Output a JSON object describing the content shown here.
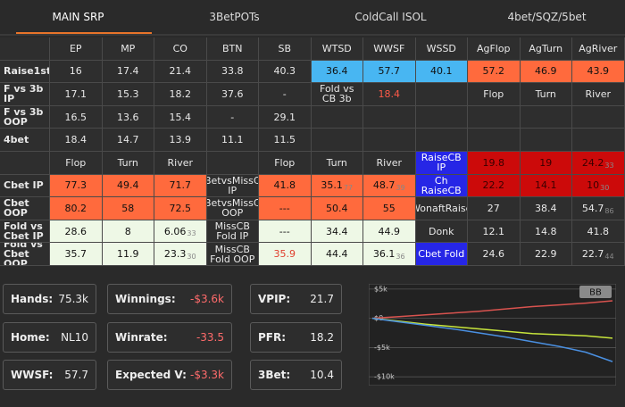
{
  "tabs": [
    {
      "label": "MAIN SRP",
      "active": true
    },
    {
      "label": "3BetPOTs"
    },
    {
      "label": "ColdCall ISOL"
    },
    {
      "label": "4bet/SQZ/5bet"
    }
  ],
  "grid": {
    "rows": [
      [
        null,
        {
          "t": "EP"
        },
        {
          "t": "MP"
        },
        {
          "t": "CO"
        },
        {
          "t": "BTN"
        },
        {
          "t": "SB"
        },
        {
          "t": "WTSD"
        },
        {
          "t": "WWSF"
        },
        {
          "t": "WSSD"
        },
        {
          "t": "AgFlop"
        },
        {
          "t": "AgTurn"
        },
        {
          "t": "AgRiver"
        }
      ],
      [
        {
          "t": "Raise1st"
        },
        {
          "t": "16"
        },
        {
          "t": "17.4"
        },
        {
          "t": "21.4"
        },
        {
          "t": "33.8"
        },
        {
          "t": "40.3"
        },
        {
          "t": "36.4",
          "bg": "#48b6f2",
          "fg": "#111111"
        },
        {
          "t": "57.7",
          "bg": "#48b6f2",
          "fg": "#111111"
        },
        {
          "t": "40.1",
          "bg": "#48b6f2",
          "fg": "#111111"
        },
        {
          "t": "57.2",
          "bg": "#ff6a3d",
          "fg": "#111111"
        },
        {
          "t": "46.9",
          "bg": "#ff6a3d",
          "fg": "#111111"
        },
        {
          "t": "43.9",
          "bg": "#ff6a3d",
          "fg": "#111111"
        }
      ],
      [
        {
          "t": "F vs 3b IP"
        },
        {
          "t": "17.1"
        },
        {
          "t": "15.3"
        },
        {
          "t": "18.2"
        },
        {
          "t": "37.6"
        },
        {
          "t": "-"
        },
        {
          "t": "Fold vs CB 3b"
        },
        {
          "t": "18.4",
          "fg": "#ff5a48"
        },
        null,
        {
          "t": "Flop"
        },
        {
          "t": "Turn"
        },
        {
          "t": "River"
        }
      ],
      [
        {
          "t": "F vs 3b OOP"
        },
        {
          "t": "16.5"
        },
        {
          "t": "13.6"
        },
        {
          "t": "15.4"
        },
        {
          "t": "-"
        },
        {
          "t": "29.1"
        },
        null,
        null,
        null,
        null,
        null,
        null
      ],
      [
        {
          "t": "4bet"
        },
        {
          "t": "18.4"
        },
        {
          "t": "14.7"
        },
        {
          "t": "13.9"
        },
        {
          "t": "11.1"
        },
        {
          "t": "11.5"
        },
        null,
        null,
        null,
        null,
        null,
        null
      ],
      [
        null,
        {
          "t": "Flop"
        },
        {
          "t": "Turn"
        },
        {
          "t": "River"
        },
        null,
        {
          "t": "Flop"
        },
        {
          "t": "Turn"
        },
        {
          "t": "River"
        },
        {
          "t": "RaiseCB IP",
          "bg": "#2626e6",
          "fg": "#ffffff"
        },
        {
          "t": "19.8",
          "bg": "#cc0a0a",
          "fg": "#3a0000"
        },
        {
          "t": "19",
          "bg": "#cc0a0a",
          "fg": "#3a0000"
        },
        {
          "t": "24.2",
          "sub": "33",
          "bg": "#cc0a0a",
          "fg": "#3a0000"
        }
      ],
      [
        {
          "t": "Cbet IP"
        },
        {
          "t": "77.3",
          "bg": "#ff6a3d",
          "fg": "#111111"
        },
        {
          "t": "49.4",
          "bg": "#ff6a3d",
          "fg": "#111111"
        },
        {
          "t": "71.7",
          "bg": "#ff6a3d",
          "fg": "#111111"
        },
        {
          "t": "BetvsMissC IP"
        },
        {
          "t": "41.8",
          "bg": "#ff6a3d",
          "fg": "#111111"
        },
        {
          "t": "35.1",
          "sub": "77",
          "bg": "#ff6a3d",
          "fg": "#111111"
        },
        {
          "t": "48.7",
          "sub": "39",
          "bg": "#ff6a3d",
          "fg": "#111111"
        },
        {
          "t": "Ch RaiseCB",
          "bg": "#2626e6",
          "fg": "#ffffff"
        },
        {
          "t": "22.2",
          "bg": "#cc0a0a",
          "fg": "#3a0000"
        },
        {
          "t": "14.1",
          "bg": "#cc0a0a",
          "fg": "#3a0000"
        },
        {
          "t": "10",
          "sub": "30",
          "bg": "#cc0a0a",
          "fg": "#3a0000"
        }
      ],
      [
        {
          "t": "Cbet OOP"
        },
        {
          "t": "80.2",
          "bg": "#ff6a3d",
          "fg": "#111111"
        },
        {
          "t": "58",
          "bg": "#ff6a3d",
          "fg": "#111111"
        },
        {
          "t": "72.5",
          "bg": "#ff6a3d",
          "fg": "#111111"
        },
        {
          "t": "BetvsMissC OOP"
        },
        {
          "t": "---",
          "bg": "#ff6a3d",
          "fg": "#111111"
        },
        {
          "t": "50.4",
          "bg": "#ff6a3d",
          "fg": "#111111"
        },
        {
          "t": "55",
          "bg": "#ff6a3d",
          "fg": "#111111"
        },
        {
          "t": "WonaftRaise"
        },
        {
          "t": "27"
        },
        {
          "t": "38.4"
        },
        {
          "t": "54.7",
          "sub": "86"
        }
      ],
      [
        {
          "t": "Fold vs Cbet IP"
        },
        {
          "t": "28.6",
          "bg": "#eef8e6",
          "fg": "#111111"
        },
        {
          "t": "8",
          "bg": "#eef8e6",
          "fg": "#111111"
        },
        {
          "t": "6.06",
          "sub": "33",
          "bg": "#eef8e6",
          "fg": "#111111"
        },
        {
          "t": "MissCB Fold IP"
        },
        {
          "t": "---",
          "bg": "#eef8e6",
          "fg": "#111111"
        },
        {
          "t": "34.4",
          "bg": "#eef8e6",
          "fg": "#111111"
        },
        {
          "t": "44.9",
          "bg": "#eef8e6",
          "fg": "#111111"
        },
        {
          "t": "Donk"
        },
        {
          "t": "12.1"
        },
        {
          "t": "14.8"
        },
        {
          "t": "41.8"
        }
      ],
      [
        {
          "t": "Fold vs Cbet OOP"
        },
        {
          "t": "35.7",
          "bg": "#eef8e6",
          "fg": "#111111"
        },
        {
          "t": "11.9",
          "bg": "#eef8e6",
          "fg": "#111111"
        },
        {
          "t": "23.3",
          "sub": "30",
          "bg": "#eef8e6",
          "fg": "#111111"
        },
        {
          "t": "MissCB Fold OOP"
        },
        {
          "t": "35.9",
          "bg": "#eef8e6",
          "fg": "#e0402e"
        },
        {
          "t": "44.4",
          "bg": "#eef8e6",
          "fg": "#111111"
        },
        {
          "t": "36.1",
          "sub": "36",
          "bg": "#eef8e6",
          "fg": "#111111"
        },
        {
          "t": "Cbet Fold",
          "bg": "#2626e6",
          "fg": "#ffffff"
        },
        {
          "t": "24.6"
        },
        {
          "t": "22.9"
        },
        {
          "t": "22.7",
          "sub": "44"
        }
      ]
    ]
  },
  "stats": [
    [
      {
        "label": "Hands:",
        "value": "75.3k"
      },
      {
        "label": "Winnings:",
        "value": "-$3.6k",
        "color": "#ff6b6b"
      },
      {
        "label": "VPIP:",
        "value": "21.7"
      }
    ],
    [
      {
        "label": "Home:",
        "value": "NL10"
      },
      {
        "label": "Winrate:",
        "value": "-33.5",
        "color": "#ff6b6b"
      },
      {
        "label": "PFR:",
        "value": "18.2"
      }
    ],
    [
      {
        "label": "WWSF:",
        "value": "57.7"
      },
      {
        "label": "Expected V:",
        "value": "-$3.3k",
        "color": "#ff6b6b"
      },
      {
        "label": "3Bet:",
        "value": "10.4"
      }
    ]
  ],
  "chart_data": {
    "type": "line",
    "badge": "BB",
    "ylim": [
      -11500,
      5900
    ],
    "yticks": [
      {
        "value": 5000,
        "label": "$5k"
      },
      {
        "value": 0,
        "label": "$0"
      },
      {
        "value": -5000,
        "label": "-$5k"
      },
      {
        "value": -10000,
        "label": "-$10k"
      }
    ],
    "grid": true,
    "series": [
      {
        "color": "#d9534f",
        "values": [
          0,
          300,
          600,
          900,
          1200,
          1600,
          2000,
          2300,
          2600,
          3000
        ]
      },
      {
        "color": "#c8e63c",
        "values": [
          0,
          -500,
          -1000,
          -1400,
          -1800,
          -2200,
          -2600,
          -2800,
          -3000,
          -3400
        ]
      },
      {
        "color": "#4a90e2",
        "values": [
          0,
          -600,
          -1200,
          -1800,
          -2500,
          -3200,
          -4000,
          -4800,
          -5800,
          -7400
        ]
      }
    ]
  }
}
